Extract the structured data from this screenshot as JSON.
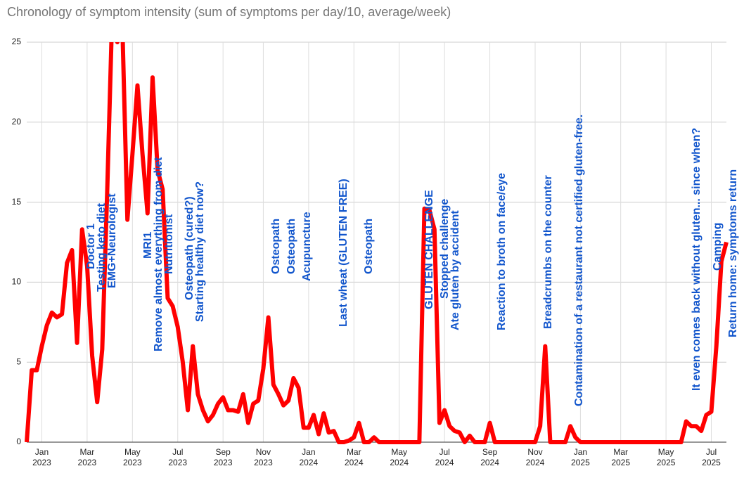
{
  "chart_data": {
    "type": "line",
    "title": "Chronology of symptom intensity (sum of symptoms per day/10, average/week)",
    "color": "#ff0000",
    "grid": true,
    "ylim": [
      0,
      25
    ],
    "yticks": [
      0,
      5,
      10,
      15,
      20,
      25
    ],
    "categories": [
      null,
      null,
      null,
      "Jan 2023",
      null,
      null,
      null,
      null,
      null,
      null,
      null,
      null,
      "Mar 2023",
      null,
      null,
      null,
      null,
      null,
      null,
      null,
      null,
      "May 2023",
      null,
      null,
      null,
      null,
      null,
      null,
      null,
      null,
      "Jul 2023",
      null,
      null,
      null,
      null,
      null,
      null,
      null,
      null,
      "Sep 2023",
      null,
      null,
      null,
      null,
      null,
      null,
      null,
      "Nov 2023",
      null,
      null,
      null,
      null,
      null,
      null,
      null,
      null,
      "Jan 2024",
      null,
      null,
      null,
      null,
      null,
      null,
      null,
      null,
      "Mar 2024",
      null,
      null,
      null,
      null,
      null,
      null,
      null,
      null,
      "May 2024",
      null,
      null,
      null,
      null,
      null,
      null,
      null,
      null,
      "Jul 2024",
      null,
      null,
      null,
      null,
      null,
      null,
      null,
      null,
      "Sep 2024",
      null,
      null,
      null,
      null,
      null,
      null,
      null,
      null,
      "Nov 2024",
      null,
      null,
      null,
      null,
      null,
      null,
      null,
      null,
      "Jan 2025",
      null,
      null,
      null,
      null,
      null,
      null,
      null,
      "Mar 2025",
      null,
      null,
      null,
      null,
      null,
      null,
      null,
      null,
      "May 2025",
      null,
      null,
      null,
      null,
      null,
      null,
      null,
      null,
      "Jul 2025",
      null,
      null,
      null
    ],
    "values": [
      0,
      4.5,
      4.5,
      6,
      7.3,
      8.1,
      7.8,
      8,
      11.2,
      12,
      6.2,
      13.3,
      11,
      5.4,
      2.5,
      5.8,
      15.8,
      27,
      25,
      26,
      13.9,
      18,
      22.3,
      18,
      14.3,
      22.8,
      17,
      15.8,
      9,
      8.5,
      7.2,
      5,
      2,
      6,
      3,
      2,
      1.3,
      1.7,
      2.4,
      2.8,
      2,
      2,
      1.9,
      3,
      1.2,
      2.4,
      2.6,
      4.6,
      7.8,
      3.6,
      3,
      2.3,
      2.6,
      4,
      3.4,
      0.9,
      0.9,
      1.7,
      0.5,
      1.8,
      0.6,
      0.7,
      0,
      0,
      0.1,
      0.3,
      1.2,
      0,
      0,
      0.3,
      0,
      0,
      0,
      0,
      0,
      0,
      0,
      0,
      0,
      14.6,
      14.5,
      13.3,
      1.2,
      2,
      1,
      0.7,
      0.6,
      0,
      0.4,
      0,
      0,
      0,
      1.2,
      0,
      0,
      0,
      0,
      0,
      0,
      0,
      0,
      0,
      1,
      6,
      0,
      0,
      0,
      0,
      1,
      0.3,
      0,
      0,
      0,
      0,
      0,
      0,
      0,
      0,
      0,
      0,
      0,
      0,
      0,
      0,
      0,
      0,
      0,
      0,
      0,
      0,
      0,
      1.3,
      1,
      1,
      0.7,
      1.7,
      1.9,
      6,
      11.3,
      12.5
    ],
    "annotations": [
      null,
      null,
      null,
      null,
      null,
      null,
      null,
      null,
      null,
      null,
      null,
      null,
      null,
      [
        "Doctor 1"
      ],
      null,
      [
        "Testing keto diet",
        "EMG+Neurologist"
      ],
      null,
      null,
      null,
      null,
      null,
      null,
      null,
      null,
      [
        "MRI1",
        "Remove almost everything from diet",
        "Nutritionist"
      ],
      null,
      null,
      null,
      null,
      null,
      null,
      null,
      [
        "Osteopath (cured?)",
        "Starting healthy diet now?"
      ],
      null,
      null,
      null,
      null,
      null,
      null,
      null,
      null,
      null,
      null,
      null,
      null,
      null,
      null,
      null,
      null,
      null,
      [
        "Osteopath"
      ],
      null,
      null,
      [
        "Osteopath"
      ],
      null,
      null,
      [
        "Acupuncture"
      ],
      null,
      null,
      null,
      null,
      null,
      null,
      [
        "Last wheat (GLUTEN FREE)"
      ],
      null,
      null,
      null,
      null,
      [
        "Osteopath"
      ],
      null,
      null,
      null,
      null,
      null,
      null,
      null,
      null,
      null,
      null,
      null,
      [
        "GLUTEN CHALLENGE"
      ],
      null,
      null,
      [
        "Stopped challenge",
        "Ate gluten by accident"
      ],
      null,
      null,
      null,
      null,
      null,
      null,
      null,
      null,
      null,
      null,
      [
        "Reaction to broth on face/eye"
      ],
      null,
      null,
      null,
      null,
      null,
      null,
      null,
      null,
      null,
      [
        "Breadcrumbs on the counter"
      ],
      null,
      null,
      null,
      null,
      null,
      [
        "Contamination of a restaurant not certified gluten-free."
      ],
      null,
      null,
      null,
      null,
      null,
      null,
      null,
      null,
      null,
      null,
      null,
      null,
      null,
      null,
      null,
      null,
      null,
      null,
      null,
      null,
      null,
      null,
      [
        "It even comes back without gluten... since when?"
      ],
      null,
      null,
      null,
      null,
      null,
      [
        "Camping",
        "Return home: symptoms return"
      ]
    ]
  }
}
